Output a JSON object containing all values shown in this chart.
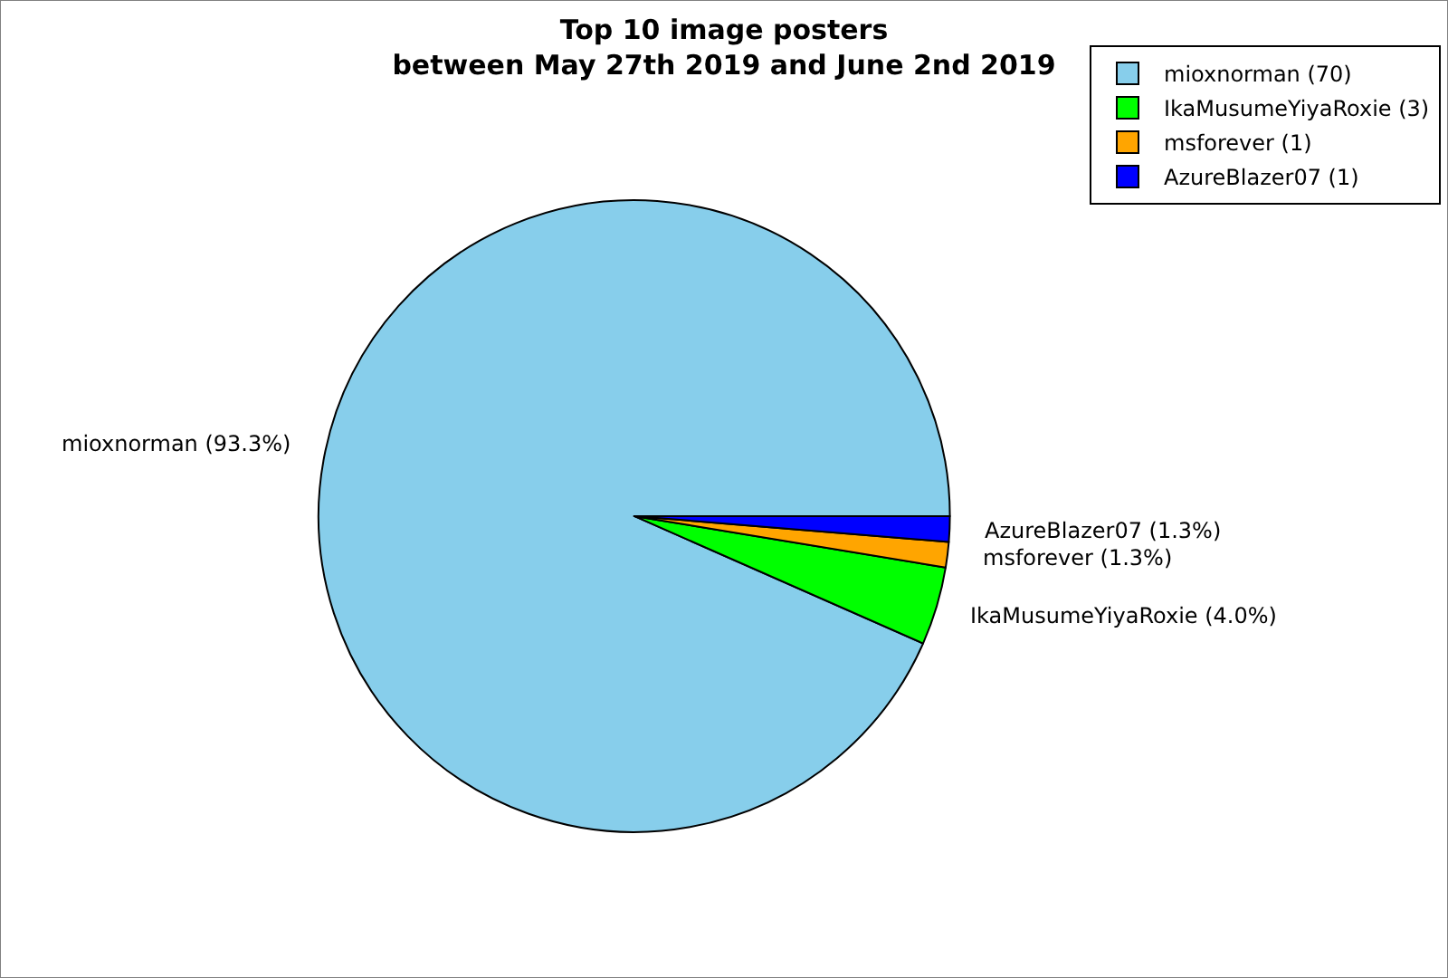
{
  "chart_data": {
    "type": "pie",
    "title": "Top 10 image posters\nbetween May 27th 2019 and June 2nd 2019",
    "categories": [
      "mioxnorman (70)",
      "IkaMusumeYiyaRoxie (3)",
      "msforever (1)",
      "AzureBlazer07 (1)"
    ],
    "values": [
      93.3,
      4.0,
      1.3,
      1.3
    ],
    "colors": [
      "#87ceeb",
      "#00ff00",
      "#ffa500",
      "#0000ff"
    ],
    "value_labels": [
      "mioxnorman (93.3%)",
      "IkaMusumeYiyaRoxie (4.0%)",
      "msforever (1.3%)",
      "AzureBlazer07 (1.3%)"
    ],
    "legend": "top right"
  }
}
